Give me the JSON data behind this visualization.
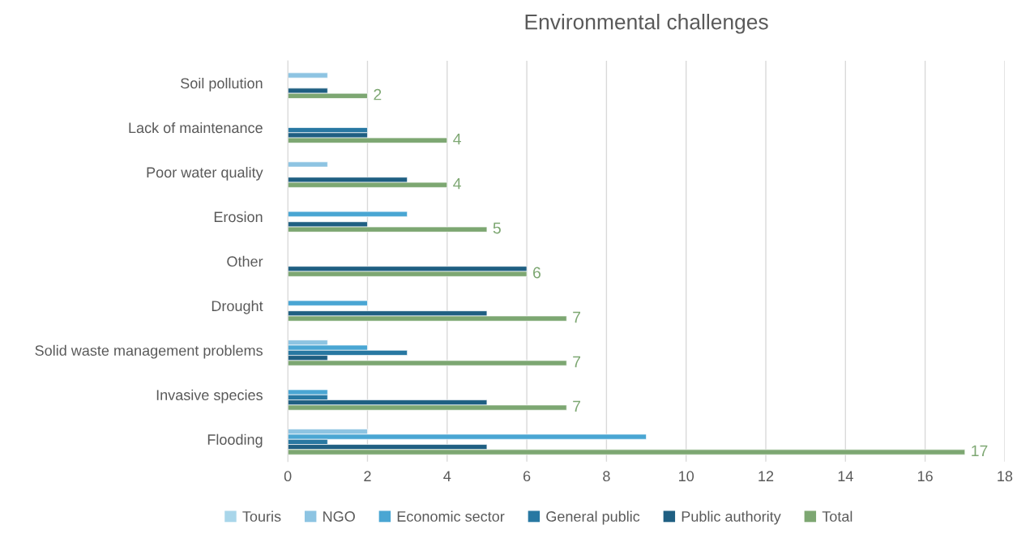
{
  "chart_data": {
    "type": "bar",
    "orientation": "horizontal",
    "title": "Environmental challenges",
    "categories": [
      "Soil pollution",
      "Lack of maintenance",
      "Poor water quality",
      "Erosion",
      "Other",
      "Drought",
      "Solid waste management problems",
      "Invasive species",
      "Flooding"
    ],
    "series": [
      {
        "name": "Touris",
        "color": "#a9d6ea",
        "values": [
          null,
          null,
          null,
          null,
          null,
          null,
          null,
          null,
          null
        ]
      },
      {
        "name": "NGO",
        "color": "#8dc4e2",
        "values": [
          1,
          null,
          1,
          null,
          null,
          null,
          1,
          null,
          2
        ]
      },
      {
        "name": "Economic sector",
        "color": "#4aa6d3",
        "values": [
          null,
          null,
          null,
          3,
          null,
          2,
          2,
          1,
          9
        ]
      },
      {
        "name": "General public",
        "color": "#2878a2",
        "values": [
          null,
          2,
          null,
          null,
          null,
          null,
          3,
          1,
          1
        ]
      },
      {
        "name": "Public authority",
        "color": "#1f5f82",
        "values": [
          1,
          2,
          3,
          2,
          6,
          5,
          1,
          5,
          5
        ]
      },
      {
        "name": "Total",
        "color": "#7da772",
        "values": [
          2,
          4,
          4,
          5,
          6,
          7,
          7,
          7,
          17
        ],
        "value_labels": [
          "2",
          "4",
          "4",
          "5",
          "6",
          "7",
          "7",
          "7",
          "17"
        ]
      }
    ],
    "xlim": [
      0,
      18
    ],
    "xticks": [
      0,
      2,
      4,
      6,
      8,
      10,
      12,
      14,
      16,
      18
    ],
    "grid": "x",
    "legend": "bottom"
  }
}
